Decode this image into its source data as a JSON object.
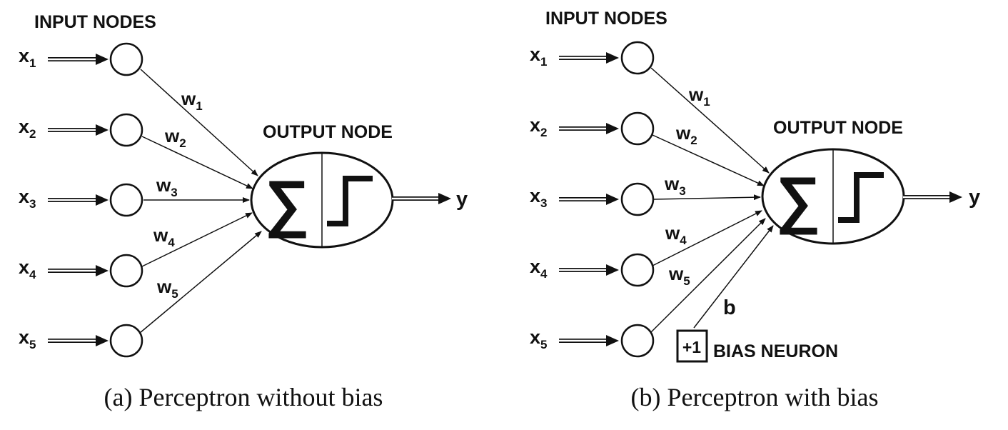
{
  "diagrams": [
    {
      "input_heading": "INPUT NODES",
      "output_heading": "OUTPUT NODE",
      "inputs": [
        {
          "base": "x",
          "sub": "1"
        },
        {
          "base": "x",
          "sub": "2"
        },
        {
          "base": "x",
          "sub": "3"
        },
        {
          "base": "x",
          "sub": "4"
        },
        {
          "base": "x",
          "sub": "5"
        }
      ],
      "weights": [
        {
          "base": "w",
          "sub": "1"
        },
        {
          "base": "w",
          "sub": "2"
        },
        {
          "base": "w",
          "sub": "3"
        },
        {
          "base": "w",
          "sub": "4"
        },
        {
          "base": "w",
          "sub": "5"
        }
      ],
      "sum_symbol": "∑",
      "output_label": "y",
      "caption": "(a) Perceptron without bias"
    },
    {
      "input_heading": "INPUT NODES",
      "output_heading": "OUTPUT NODE",
      "inputs": [
        {
          "base": "x",
          "sub": "1"
        },
        {
          "base": "x",
          "sub": "2"
        },
        {
          "base": "x",
          "sub": "3"
        },
        {
          "base": "x",
          "sub": "4"
        },
        {
          "base": "x",
          "sub": "5"
        }
      ],
      "weights": [
        {
          "base": "w",
          "sub": "1"
        },
        {
          "base": "w",
          "sub": "2"
        },
        {
          "base": "w",
          "sub": "3"
        },
        {
          "base": "w",
          "sub": "4"
        },
        {
          "base": "w",
          "sub": "5"
        }
      ],
      "sum_symbol": "∑",
      "output_label": "y",
      "bias_weight_label": "b",
      "bias_value": "+1",
      "bias_label": "BIAS NEURON",
      "caption": "(b) Perceptron with bias"
    }
  ]
}
